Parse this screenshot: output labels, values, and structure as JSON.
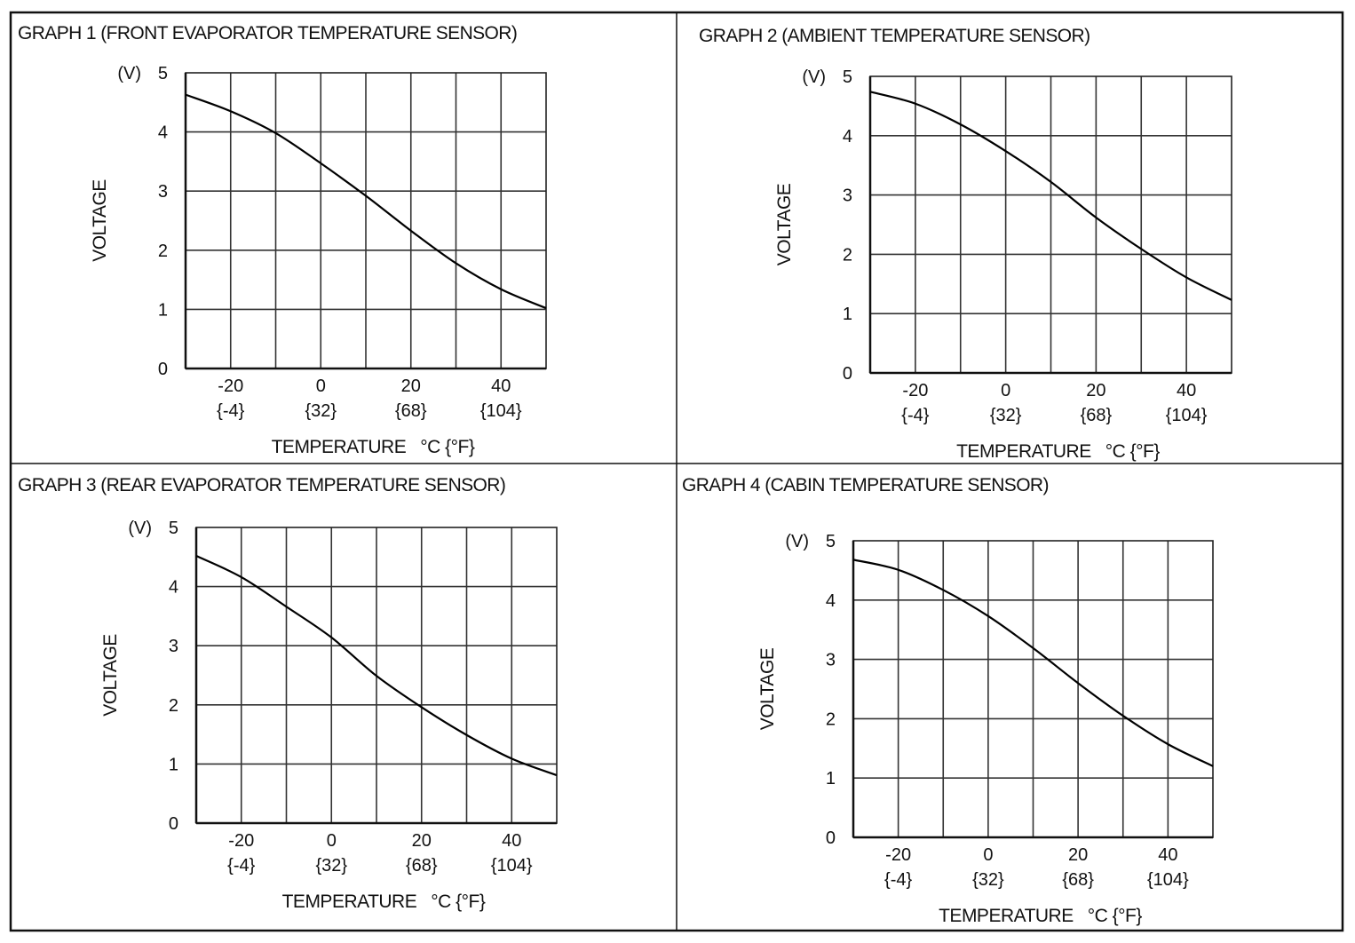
{
  "chart_data": [
    {
      "type": "line",
      "title": "GRAPH 1 (FRONT EVAPORATOR TEMPERATURE SENSOR)",
      "xlabel": "TEMPERATURE   °C {°F}",
      "ylabel": "VOLTAGE",
      "yunit": "(V)",
      "xlim": [
        -30,
        50
      ],
      "ylim": [
        0,
        5
      ],
      "grid": true,
      "xticks": [
        -20,
        0,
        20,
        40
      ],
      "xtick_labels": [
        "-20",
        "0",
        "20",
        "40"
      ],
      "xtick_sublabels": [
        "{-4}",
        "{32}",
        "{68}",
        "{104}"
      ],
      "yticks": [
        "0",
        "1",
        "2",
        "3",
        "4",
        "5"
      ],
      "x": [
        -30,
        -20,
        -10,
        0,
        10,
        20,
        30,
        40,
        50
      ],
      "y": [
        4.63,
        4.35,
        3.98,
        3.47,
        2.92,
        2.33,
        1.78,
        1.34,
        1.02
      ]
    },
    {
      "type": "line",
      "title": "GRAPH 2 (AMBIENT TEMPERATURE SENSOR)",
      "xlabel": "TEMPERATURE   °C {°F}",
      "ylabel": "VOLTAGE",
      "yunit": "(V)",
      "xlim": [
        -30,
        50
      ],
      "ylim": [
        0,
        5
      ],
      "grid": true,
      "xticks": [
        -20,
        0,
        20,
        40
      ],
      "xtick_labels": [
        "-20",
        "0",
        "20",
        "40"
      ],
      "xtick_sublabels": [
        "{-4}",
        "{32}",
        "{68}",
        "{104}"
      ],
      "yticks": [
        "0",
        "1",
        "2",
        "3",
        "4",
        "5"
      ],
      "x": [
        -30,
        -20,
        -10,
        0,
        10,
        20,
        30,
        40,
        50
      ],
      "y": [
        4.74,
        4.54,
        4.19,
        3.74,
        3.22,
        2.62,
        2.09,
        1.61,
        1.23
      ]
    },
    {
      "type": "line",
      "title": "GRAPH 3 (REAR EVAPORATOR TEMPERATURE SENSOR)",
      "xlabel": "TEMPERATURE   °C {°F}",
      "ylabel": "VOLTAGE",
      "yunit": "(V)",
      "xlim": [
        -30,
        50
      ],
      "ylim": [
        0,
        5
      ],
      "grid": true,
      "xticks": [
        -20,
        0,
        20,
        40
      ],
      "xtick_labels": [
        "-20",
        "0",
        "20",
        "40"
      ],
      "xtick_sublabels": [
        "{-4}",
        "{32}",
        "{68}",
        "{104}"
      ],
      "yticks": [
        "0",
        "1",
        "2",
        "3",
        "4",
        "5"
      ],
      "x": [
        -30,
        -20,
        -10,
        0,
        10,
        20,
        30,
        40,
        50
      ],
      "y": [
        4.52,
        4.16,
        3.66,
        3.14,
        2.49,
        1.96,
        1.49,
        1.09,
        0.81
      ]
    },
    {
      "type": "line",
      "title": "GRAPH 4 (CABIN TEMPERATURE SENSOR)",
      "xlabel": "TEMPERATURE   °C {°F}",
      "ylabel": "VOLTAGE",
      "yunit": "(V)",
      "xlim": [
        -30,
        50
      ],
      "ylim": [
        0,
        5
      ],
      "grid": true,
      "xticks": [
        -20,
        0,
        20,
        40
      ],
      "xtick_labels": [
        "-20",
        "0",
        "20",
        "40"
      ],
      "xtick_sublabels": [
        "{-4}",
        "{32}",
        "{68}",
        "{104}"
      ],
      "yticks": [
        "0",
        "1",
        "2",
        "3",
        "4",
        "5"
      ],
      "x": [
        -30,
        -20,
        -10,
        0,
        10,
        20,
        30,
        40,
        50
      ],
      "y": [
        4.68,
        4.51,
        4.17,
        3.73,
        3.19,
        2.6,
        2.05,
        1.57,
        1.2
      ]
    }
  ]
}
